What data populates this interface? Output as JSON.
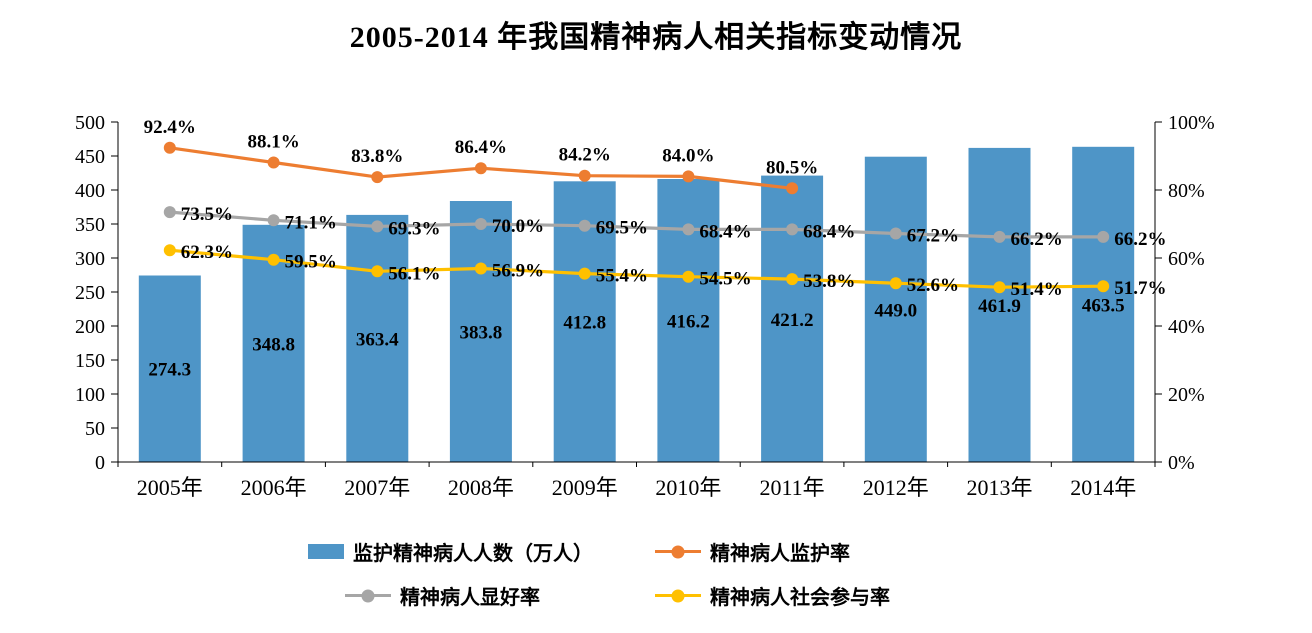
{
  "title": "2005-2014 年我国精神病人相关指标变动情况",
  "chart_data": {
    "type": "bar+line",
    "categories": [
      "2005年",
      "2006年",
      "2007年",
      "2008年",
      "2009年",
      "2010年",
      "2011年",
      "2012年",
      "2013年",
      "2014年"
    ],
    "bar_series": {
      "name": "监护精神病人人数（万人）",
      "color": "#4E95C7",
      "axis": "left",
      "values": [
        274.3,
        348.8,
        363.4,
        383.8,
        412.8,
        416.2,
        421.2,
        449.0,
        461.9,
        463.5
      ]
    },
    "line_series": [
      {
        "name": "精神病人监护率",
        "color": "#ED7D31",
        "axis": "right",
        "label_position": "above",
        "values": [
          92.4,
          88.1,
          83.8,
          86.4,
          84.2,
          84.0,
          80.5,
          null,
          null,
          null
        ]
      },
      {
        "name": "精神病人显好率",
        "color": "#A6A6A6",
        "axis": "right",
        "label_position": "right",
        "values": [
          73.5,
          71.1,
          69.3,
          70.0,
          69.5,
          68.4,
          68.4,
          67.2,
          66.2,
          66.2
        ]
      },
      {
        "name": "精神病人社会参与率",
        "color": "#FFC000",
        "axis": "right",
        "label_position": "right",
        "values": [
          62.3,
          59.5,
          56.1,
          56.9,
          55.4,
          54.5,
          53.8,
          52.6,
          51.4,
          51.7
        ]
      }
    ],
    "left_axis": {
      "min": 0,
      "max": 500,
      "step": 50,
      "ticks": [
        "500",
        "450",
        "400",
        "350",
        "300",
        "250",
        "200",
        "150",
        "100",
        "50",
        "0"
      ]
    },
    "right_axis": {
      "min": 0,
      "max": 100,
      "step": 20,
      "ticks": [
        "100%",
        "80%",
        "60%",
        "40%",
        "20%",
        "0%"
      ]
    },
    "grid": false,
    "legend_position": "bottom"
  }
}
